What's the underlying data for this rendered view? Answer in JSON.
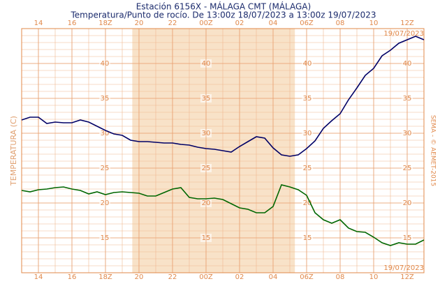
{
  "chart_data": {
    "type": "line",
    "title": "Estación 6156X - MÁLAGA CMT (MÁLAGA)",
    "subtitle": "Temperatura/Punto de rocío. De 13:00z 18/07/2023 a 13:00z 19/07/2023",
    "y_label": "TEMPERATURA (C)",
    "credit": "SEMA - © AEMET-2015",
    "date_top": "19/07/2023",
    "date_bottom": "19/07/2023",
    "xlim": [
      13,
      37
    ],
    "xticks": [
      14,
      16,
      {
        "value": 18,
        "label": "18Z"
      },
      20,
      22,
      {
        "value": 24,
        "label": "00Z"
      },
      {
        "value": 26,
        "label": "02"
      },
      {
        "value": 28,
        "label": "04"
      },
      {
        "value": 30,
        "label": "06Z"
      },
      {
        "value": 32,
        "label": "08"
      },
      {
        "value": 34,
        "label": "10"
      },
      {
        "value": 36,
        "label": "12Z"
      }
    ],
    "ylim": [
      10,
      45
    ],
    "yticks": [
      15,
      20,
      25,
      30,
      35,
      40
    ],
    "grid": true,
    "x_grid_step": 1,
    "y_grid_step": 1,
    "shaded_range": [
      19.6,
      29.3
    ],
    "shade_color": "#f8e2c8",
    "x": [
      13,
      13.5,
      14,
      14.5,
      15,
      15.5,
      16,
      16.5,
      17,
      17.5,
      18,
      18.5,
      19,
      19.5,
      20,
      20.5,
      21,
      21.5,
      22,
      22.5,
      23,
      23.5,
      24,
      24.5,
      25,
      25.5,
      26,
      26.5,
      27,
      27.5,
      28,
      28.5,
      29,
      29.5,
      30,
      30.5,
      31,
      31.5,
      32,
      32.5,
      33,
      33.5,
      34,
      34.5,
      35,
      35.5,
      36,
      36.5,
      37
    ],
    "series": [
      {
        "name": "Temperatura",
        "color": "#000066",
        "values": [
          31.9,
          32.3,
          32.3,
          31.4,
          31.6,
          31.5,
          31.5,
          31.9,
          31.6,
          31.0,
          30.4,
          29.9,
          29.7,
          29.0,
          28.8,
          28.8,
          28.7,
          28.6,
          28.6,
          28.4,
          28.3,
          28.0,
          27.8,
          27.7,
          27.5,
          27.3,
          28.1,
          28.8,
          29.5,
          29.3,
          27.9,
          26.9,
          26.7,
          26.9,
          27.8,
          28.9,
          30.7,
          31.8,
          32.8,
          34.8,
          36.5,
          38.3,
          39.3,
          41.1,
          41.9,
          42.9,
          43.4,
          43.9,
          43.4
        ]
      },
      {
        "name": "Punto de rocío",
        "color": "#006600",
        "values": [
          21.8,
          21.6,
          21.9,
          22.0,
          22.2,
          22.3,
          22.0,
          21.8,
          21.3,
          21.6,
          21.2,
          21.5,
          21.6,
          21.5,
          21.4,
          21.0,
          21.0,
          21.5,
          22.0,
          22.2,
          20.8,
          20.6,
          20.6,
          20.7,
          20.5,
          19.9,
          19.3,
          19.1,
          18.6,
          18.6,
          19.5,
          22.6,
          22.3,
          21.9,
          21.1,
          18.6,
          17.6,
          17.1,
          17.6,
          16.4,
          15.9,
          15.8,
          15.1,
          14.3,
          13.9,
          14.3,
          14.1,
          14.1,
          14.7
        ]
      }
    ]
  }
}
